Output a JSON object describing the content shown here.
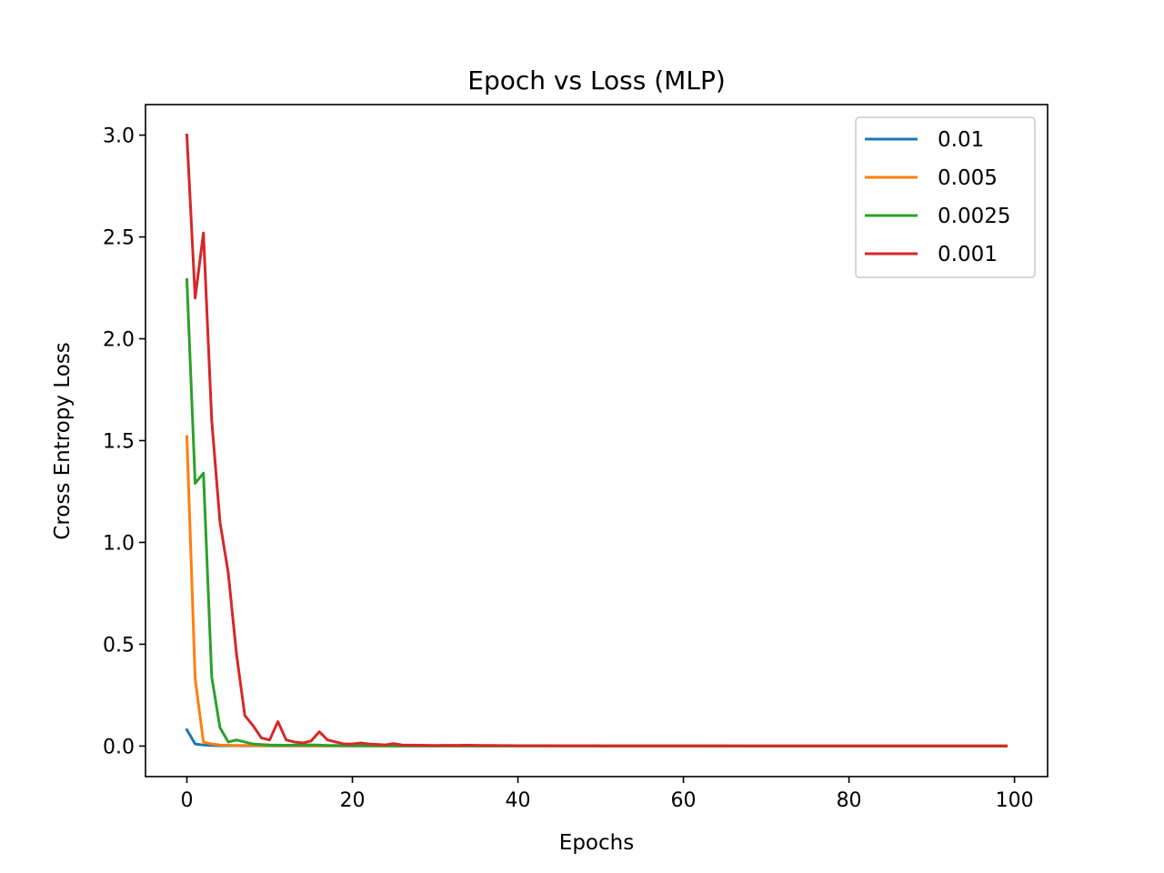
{
  "chart_data": {
    "type": "line",
    "title": "Epoch vs Loss (MLP)",
    "xlabel": "Epochs",
    "ylabel": "Cross Entropy Loss",
    "xlim": [
      -5,
      104
    ],
    "ylim": [
      -0.15,
      3.15
    ],
    "xticks": [
      0,
      20,
      40,
      60,
      80,
      100
    ],
    "yticks": [
      0.0,
      0.5,
      1.0,
      1.5,
      2.0,
      2.5,
      3.0
    ],
    "xtick_labels": [
      "0",
      "20",
      "40",
      "60",
      "80",
      "100"
    ],
    "ytick_labels": [
      "0.0",
      "0.5",
      "1.0",
      "1.5",
      "2.0",
      "2.5",
      "3.0"
    ],
    "grid": false,
    "legend_position": "top-right",
    "x_range": [
      0,
      99
    ],
    "series": [
      {
        "name": "0.01",
        "color": "#1f77b4",
        "points": [
          [
            0,
            0.08
          ],
          [
            1,
            0.01
          ],
          [
            2,
            0.005
          ],
          [
            3,
            0.003
          ],
          [
            4,
            0.002
          ],
          [
            10,
            0.001
          ],
          [
            99,
            0.0
          ]
        ]
      },
      {
        "name": "0.005",
        "color": "#ff7f0e",
        "points": [
          [
            0,
            1.52
          ],
          [
            1,
            0.33
          ],
          [
            2,
            0.02
          ],
          [
            3,
            0.01
          ],
          [
            4,
            0.005
          ],
          [
            6,
            0.003
          ],
          [
            10,
            0.002
          ],
          [
            20,
            0.001
          ],
          [
            99,
            0.0
          ]
        ]
      },
      {
        "name": "0.0025",
        "color": "#2ca02c",
        "points": [
          [
            0,
            2.29
          ],
          [
            1,
            1.29
          ],
          [
            2,
            1.34
          ],
          [
            3,
            0.34
          ],
          [
            4,
            0.09
          ],
          [
            5,
            0.02
          ],
          [
            6,
            0.03
          ],
          [
            7,
            0.02
          ],
          [
            8,
            0.01
          ],
          [
            10,
            0.005
          ],
          [
            12,
            0.004
          ],
          [
            15,
            0.006
          ],
          [
            17,
            0.003
          ],
          [
            20,
            0.002
          ],
          [
            25,
            0.001
          ],
          [
            99,
            0.0
          ]
        ]
      },
      {
        "name": "0.001",
        "color": "#d62728",
        "points": [
          [
            0,
            3.0
          ],
          [
            1,
            2.2
          ],
          [
            2,
            2.52
          ],
          [
            3,
            1.6
          ],
          [
            4,
            1.1
          ],
          [
            5,
            0.85
          ],
          [
            6,
            0.45
          ],
          [
            7,
            0.15
          ],
          [
            8,
            0.1
          ],
          [
            9,
            0.04
          ],
          [
            10,
            0.03
          ],
          [
            11,
            0.12
          ],
          [
            12,
            0.03
          ],
          [
            13,
            0.02
          ],
          [
            14,
            0.015
          ],
          [
            15,
            0.025
          ],
          [
            16,
            0.07
          ],
          [
            17,
            0.03
          ],
          [
            18,
            0.02
          ],
          [
            19,
            0.01
          ],
          [
            20,
            0.01
          ],
          [
            21,
            0.015
          ],
          [
            22,
            0.01
          ],
          [
            23,
            0.008
          ],
          [
            24,
            0.006
          ],
          [
            25,
            0.012
          ],
          [
            26,
            0.005
          ],
          [
            28,
            0.004
          ],
          [
            30,
            0.003
          ],
          [
            34,
            0.004
          ],
          [
            36,
            0.003
          ],
          [
            40,
            0.002
          ],
          [
            50,
            0.001
          ],
          [
            99,
            0.001
          ]
        ]
      }
    ]
  }
}
